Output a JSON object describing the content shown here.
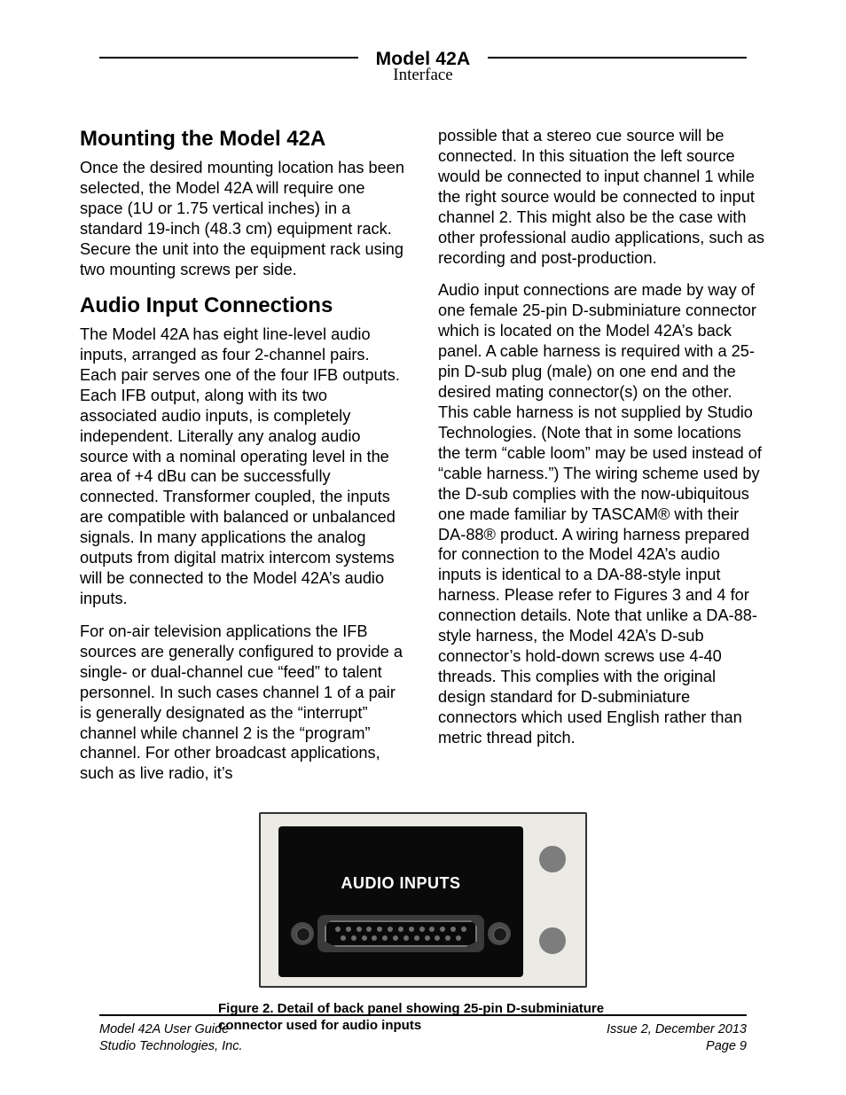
{
  "header": {
    "title": "Model 42A",
    "subtitle": "Interface"
  },
  "leftCol": {
    "h1": "Mounting the Model 42A",
    "p1": "Once the desired mounting location has been selected, the Model 42A will require one space (1U or 1.75 vertical inches) in a standard 19-inch (48.3 cm) equipment rack. Secure the unit into the equipment rack using two mounting screws per side.",
    "h2": "Audio Input Connections",
    "p2": "The Model 42A has eight line-level audio inputs, arranged as four 2-channel pairs. Each pair serves one of the four IFB out­puts. Each IFB output, along with its two associated audio inputs, is completely independent. Literally any analog audio source with a nominal operating level in the area of +4 dBu can be success­fully connected. Transformer coupled, the inputs are compatible with balanced or unbalanced signals. In many applica­tions the analog outputs from digital matrix intercom systems will be connected to the Model 42A’s audio inputs.",
    "p3": "For on-air television applications the IFB sources are generally configured to pro­vide a single- or dual-channel cue “feed” to talent personnel. In such cases chan­nel 1 of a pair is generally designated as the “interrupt” channel while channel 2 is the “program” channel. For other broad­cast applications, such as live radio, it’s"
  },
  "rightCol": {
    "p1": "possible that a stereo cue source will be connected. In this situation the left source would be connected to input channel 1 while the right source would be connected to input channel 2. This might also be the case with other professional audio applications, such as recording and post-production.",
    "p2": "Audio input connections are made by way of one female 25-pin D-subminiature con­nector which is located on the Model 42A’s back panel. A cable harness is required with a 25-pin D-sub plug (male) on one end and the desired mating connector(s) on the other. This cable harness is not sup­plied by Studio Technologies. (Note that in some locations the term “cable loom” may be used instead of “cable harness.”) The wiring scheme used by the D-sub complies with the now-ubiquitous one made familiar by TASCAM® with their DA-88® product. A wiring harness prepared for connection to the Model 42A’s audio inputs is identical to a DA-88-style input harness. Please refer to Figures 3 and 4 for connection details. Note that unlike a DA-88-style harness, the Model 42A’s D-sub connector’s hold-down screws use 4-40 threads. This complies with the original design standard for D-subminiature connectors which used English rather than metric thread pitch."
  },
  "figure": {
    "panelLabel": "AUDIO INPUTS",
    "caption": "Figure 2. Detail of back panel showing 25-pin D-subminiature connector used for audio inputs"
  },
  "footer": {
    "leftTop": "Model 42A User Guide",
    "leftBottom": "Studio Technologies, Inc.",
    "rightTop": "Issue 2, December 2013",
    "rightBottom": "Page 9"
  }
}
